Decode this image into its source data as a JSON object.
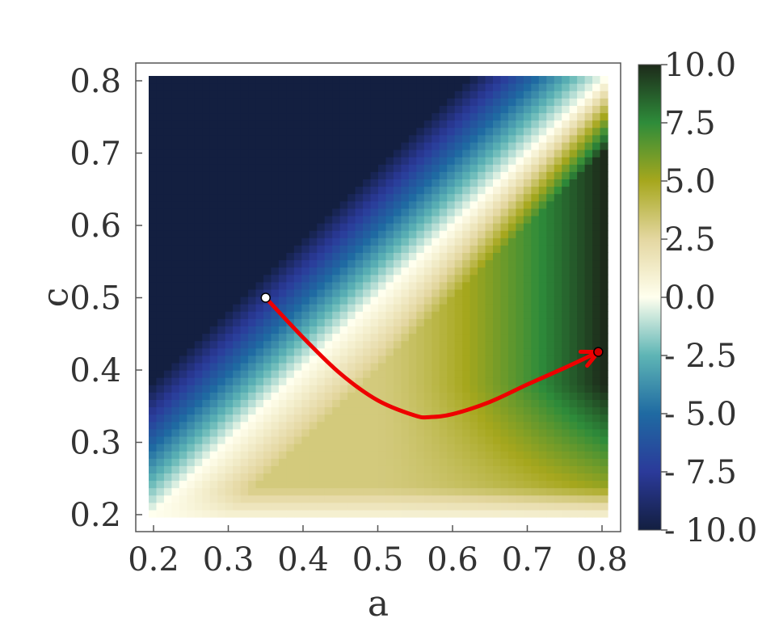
{
  "chart_data": {
    "type": "heatmap",
    "title": "",
    "xlabel": "a",
    "ylabel": "c",
    "xlim": [
      0.2,
      0.8
    ],
    "ylim": [
      0.2,
      0.8
    ],
    "x_ticks": [
      "0.2",
      "0.3",
      "0.4",
      "0.5",
      "0.6",
      "0.7",
      "0.8"
    ],
    "y_ticks": [
      "0.2",
      "0.3",
      "0.4",
      "0.5",
      "0.6",
      "0.7",
      "0.8"
    ],
    "grid_resolution": 60,
    "field": {
      "description_of_values": "signed field value, colored by diverging colormap clipped to [-10, 10]",
      "diagonal_zero": "c = a",
      "negative_region": "c > a (saturates at -10 in upper-left)",
      "positive_region": "c < a (peaks near +10 around a=0.8, c=0.45)"
    },
    "colorbar": {
      "range": [
        -10,
        10
      ],
      "ticks": [
        "10.0",
        "7.5",
        "5.0",
        "2.5",
        "0.0",
        "- 2.5",
        "- 5.0",
        "- 7.5",
        "- 10.0"
      ],
      "tick_values": [
        10,
        7.5,
        5,
        2.5,
        0,
        -2.5,
        -5,
        -7.5,
        -10
      ],
      "colors": [
        "#131f40",
        "#2b3a9a",
        "#1f6aa2",
        "#5eb5b5",
        "#ffffee",
        "#e4d7a1",
        "#a6a71d",
        "#2e8c3a",
        "#1d2a1a"
      ]
    },
    "trajectory": {
      "color": "#ee0000",
      "start": {
        "a": 0.35,
        "c": 0.5
      },
      "end": {
        "a": 0.795,
        "c": 0.425
      },
      "points": [
        {
          "a": 0.35,
          "c": 0.5
        },
        {
          "a": 0.4,
          "c": 0.445
        },
        {
          "a": 0.45,
          "c": 0.395
        },
        {
          "a": 0.5,
          "c": 0.358
        },
        {
          "a": 0.55,
          "c": 0.337
        },
        {
          "a": 0.57,
          "c": 0.335
        },
        {
          "a": 0.6,
          "c": 0.339
        },
        {
          "a": 0.65,
          "c": 0.356
        },
        {
          "a": 0.7,
          "c": 0.38
        },
        {
          "a": 0.75,
          "c": 0.403
        },
        {
          "a": 0.795,
          "c": 0.425
        }
      ]
    }
  }
}
